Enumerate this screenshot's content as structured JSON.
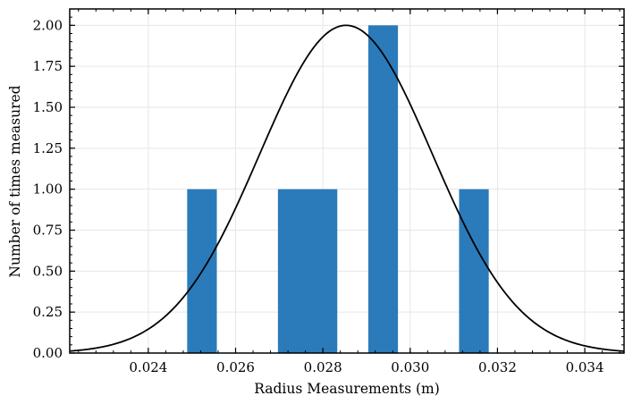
{
  "chart_data": {
    "type": "bar",
    "title": "",
    "xlabel": "Radius Measurements (m)",
    "ylabel": "Number of times measured",
    "xlim": [
      0.0222,
      0.0349
    ],
    "ylim": [
      0,
      2.1
    ],
    "grid": true,
    "bar_color": "#2b7bba",
    "bars": [
      {
        "x0": 0.02489,
        "x1": 0.02557,
        "value": 1
      },
      {
        "x0": 0.02697,
        "x1": 0.02833,
        "value": 1
      },
      {
        "x0": 0.02904,
        "x1": 0.02972,
        "value": 2
      },
      {
        "x0": 0.03112,
        "x1": 0.0318,
        "value": 1
      }
    ],
    "curve": {
      "type": "gaussian",
      "mean": 0.02853,
      "std": 0.00198,
      "peak": 2.0,
      "color": "#000000"
    },
    "x_ticks": [
      0.024,
      0.026,
      0.028,
      0.03,
      0.032,
      0.034
    ],
    "x_tick_labels": [
      "0.024",
      "0.026",
      "0.028",
      "0.030",
      "0.032",
      "0.034"
    ],
    "y_ticks": [
      0,
      0.25,
      0.5,
      0.75,
      1.0,
      1.25,
      1.5,
      1.75,
      2.0
    ],
    "y_tick_labels": [
      "0.00",
      "0.25",
      "0.50",
      "0.75",
      "1.00",
      "1.25",
      "1.50",
      "1.75",
      "2.00"
    ]
  }
}
